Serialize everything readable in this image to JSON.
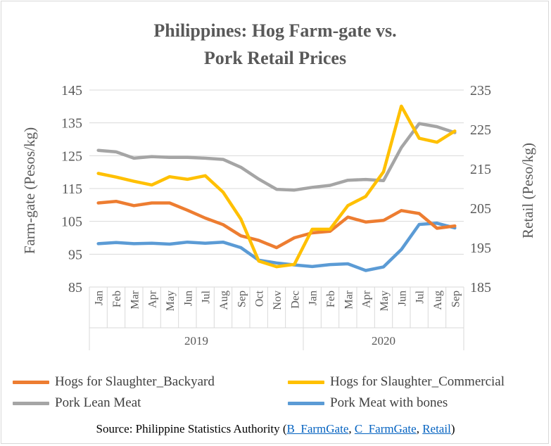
{
  "chart_data": {
    "type": "line",
    "title_line1": "Philippines: Hog Farm-gate vs.",
    "title_line2": "Pork Retail Prices",
    "ylabel_left": "Farm-gate  (Pesos/kg)",
    "ylabel_right": "Retail (Peso/kg)",
    "ylim_left": [
      85,
      145
    ],
    "ylim_right": [
      185,
      235
    ],
    "yticks_left": [
      85,
      95,
      105,
      115,
      125,
      135,
      145
    ],
    "yticks_right": [
      185,
      195,
      205,
      215,
      225,
      235
    ],
    "months": [
      "Jan",
      "Feb",
      "Mar",
      "Apr",
      "May",
      "Jun",
      "Jul",
      "Aug",
      "Sep",
      "Oct",
      "Nov",
      "Dec",
      "Jan",
      "Feb",
      "Mar",
      "Apr",
      "May",
      "Jun",
      "Jul",
      "Aug",
      "Sep"
    ],
    "years": [
      {
        "label": "2019",
        "start": 0,
        "end": 11
      },
      {
        "label": "2020",
        "start": 12,
        "end": 20
      }
    ],
    "grid": true,
    "legend_position": "bottom",
    "series": [
      {
        "name": "Hogs for Slaughter_Backyard",
        "axis": "left",
        "color": "#ed7d31",
        "values": [
          110.6,
          111.1,
          109.8,
          110.6,
          110.6,
          108.4,
          106.0,
          104.0,
          100.6,
          99.2,
          97.0,
          100.0,
          101.5,
          102.0,
          106.3,
          104.8,
          105.3,
          108.3,
          107.4,
          102.9,
          103.6
        ]
      },
      {
        "name": "Hogs for Slaughter_Commercial",
        "axis": "left",
        "color": "#ffc000",
        "values": [
          119.6,
          118.5,
          117.2,
          116.1,
          118.6,
          117.8,
          118.9,
          113.9,
          105.7,
          92.9,
          91.2,
          91.9,
          102.6,
          102.6,
          109.8,
          112.6,
          120.1,
          140.1,
          130.3,
          129.1,
          132.5
        ]
      },
      {
        "name": "Pork Lean Meat",
        "axis": "right",
        "color": "#a5a5a5",
        "values": [
          219.7,
          219.3,
          217.7,
          218.1,
          217.9,
          217.9,
          217.7,
          217.4,
          215.4,
          212.4,
          209.8,
          209.6,
          210.3,
          210.8,
          212.1,
          212.3,
          212.0,
          220.4,
          226.5,
          225.7,
          224.2
        ]
      },
      {
        "name": "Pork Meat with bones",
        "axis": "right",
        "color": "#5b9bd5",
        "values": [
          196.0,
          196.3,
          196.0,
          196.1,
          195.9,
          196.4,
          196.1,
          196.4,
          195.0,
          191.8,
          191.1,
          190.6,
          190.2,
          190.7,
          190.9,
          189.2,
          190.1,
          194.5,
          200.9,
          201.2,
          200.0
        ]
      }
    ]
  },
  "source": {
    "prefix": "Source:  Philippine Statistics Authority (",
    "link1": "B_FarmGate",
    "sep1": ", ",
    "link2": "C_FarmGate",
    "sep2": ", ",
    "link3": "Retail",
    "suffix": ")"
  }
}
